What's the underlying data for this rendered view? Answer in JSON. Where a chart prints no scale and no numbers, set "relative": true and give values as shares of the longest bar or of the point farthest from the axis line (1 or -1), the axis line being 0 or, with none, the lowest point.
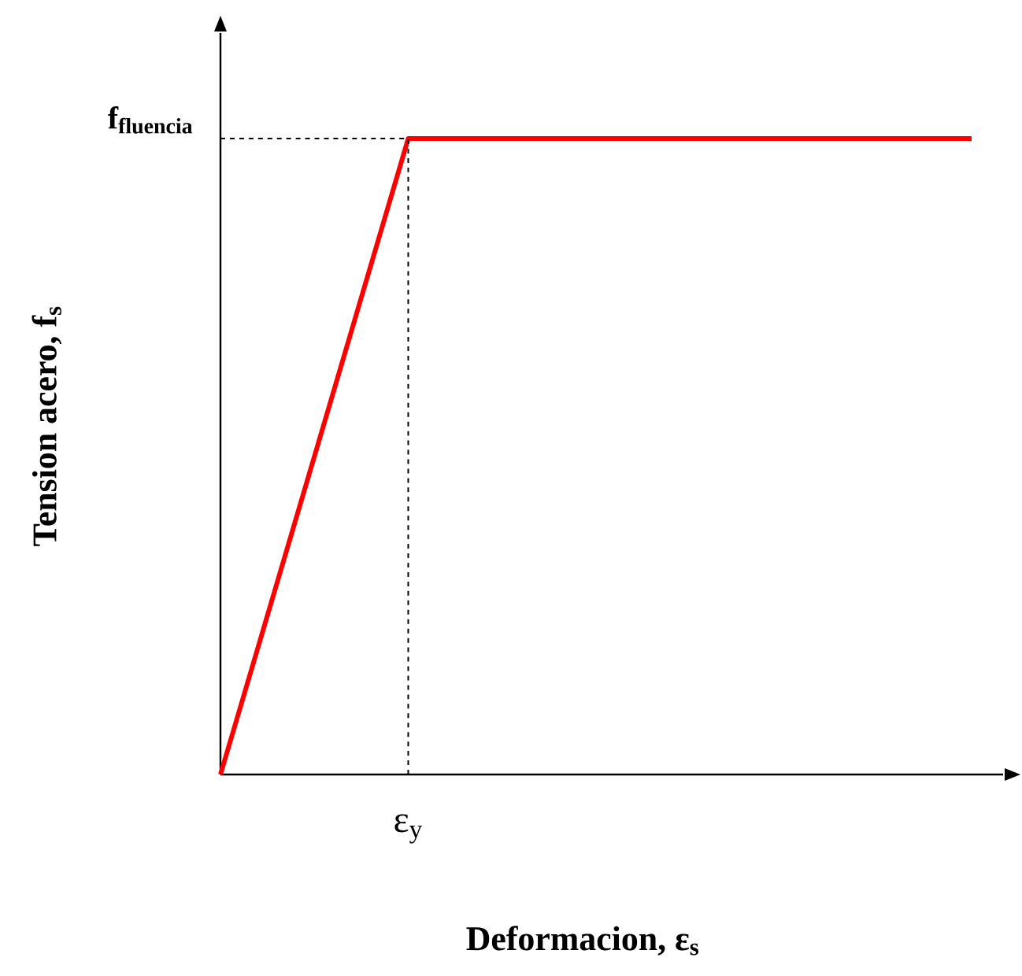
{
  "chart_data": {
    "type": "line",
    "relative": true,
    "xlabel": "Deformacion, ε$_{s}$",
    "ylabel": "Tension acero, f$_{s}$",
    "categories": [
      null,
      null,
      null,
      null,
      null
    ],
    "series": [
      {
        "color": "#ff0000",
        "values": [
          0,
          1,
          1,
          1,
          1
        ]
      }
    ],
    "annotations": [
      "ε$_{y}$"
    ],
    "ref_lines": [
      {
        "axis": "y",
        "value": 1,
        "label": "f$_{fluencia}$",
        "line_style": "dashed",
        "color": "#000000"
      }
    ]
  }
}
